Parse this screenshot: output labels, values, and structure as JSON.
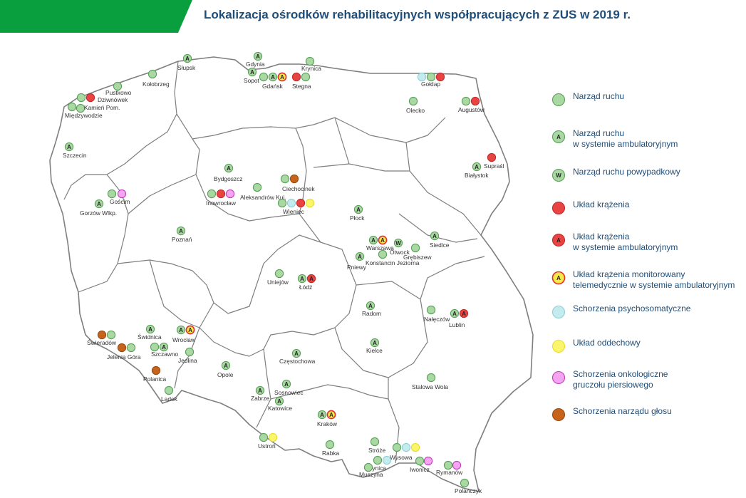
{
  "title": "Lokalizacja ośrodków rehabilitacyjnych współpracujących z ZUS w 2019 r.",
  "colors": {
    "brand_green": "#0a9f3e",
    "title_blue": "#1f4e79",
    "border_gray": "#7f7f7f"
  },
  "legend": [
    {
      "id": "narzad",
      "label": "Narząd ruchu",
      "fill": "#a9d8a2",
      "stroke": "#5aa05a",
      "letter": ""
    },
    {
      "id": "narzad-a",
      "label": "Narząd ruchu\nw systemie ambulatoryjnym",
      "fill": "#a9d8a2",
      "stroke": "#5aa05a",
      "letter": "A"
    },
    {
      "id": "narzad-w",
      "label": "Narząd ruchu powypadkowy",
      "fill": "#a9d8a2",
      "stroke": "#5aa05a",
      "letter": "W"
    },
    {
      "id": "uklad",
      "label": "Układ krążenia",
      "fill": "#e84444",
      "stroke": "#c42a2a",
      "letter": ""
    },
    {
      "id": "uklad-a",
      "label": "Układ krążenia\nw systemie ambulatoryjnym",
      "fill": "#e84444",
      "stroke": "#c42a2a",
      "letter": "A"
    },
    {
      "id": "uklad-t",
      "label": "Układ krążenia monitorowany\ntelemedycznie w systemie ambulatoryjnym",
      "fill": "#f7e84a",
      "stroke": "#e03030",
      "letter": "A"
    },
    {
      "id": "psycho",
      "label": "Schorzenia psychosomatyczne",
      "fill": "#c4ecef",
      "stroke": "#8fd0d6",
      "letter": ""
    },
    {
      "id": "oddech",
      "label": "Układ oddechowy",
      "fill": "#fbf56a",
      "stroke": "#e8dc30",
      "letter": ""
    },
    {
      "id": "onko",
      "label": "Schorzenia onkologiczne\ngruczołu piersiowego",
      "fill": "#f3a6ef",
      "stroke": "#c43ac0",
      "letter": ""
    },
    {
      "id": "glos",
      "label": "Schorzenia narządu głosu",
      "fill": "#c7641c",
      "stroke": "#9b4a12",
      "letter": ""
    }
  ],
  "cities": [
    {
      "name": "Słupsk",
      "markers": [
        "narzad-a"
      ]
    },
    {
      "name": "Gdynia",
      "markers": [
        "narzad-a"
      ]
    },
    {
      "name": "Sopot",
      "markers": [
        "narzad-a"
      ]
    },
    {
      "name": "Gdańsk",
      "markers": [
        "narzad",
        "narzad-a",
        "uklad-t"
      ]
    },
    {
      "name": "Krynica",
      "markers": [
        "narzad"
      ]
    },
    {
      "name": "Stegna",
      "markers": [
        "uklad",
        "narzad"
      ]
    },
    {
      "name": "Gołdap",
      "markers": [
        "psycho",
        "narzad",
        "uklad"
      ]
    },
    {
      "name": "Olecko",
      "markers": [
        "narzad"
      ]
    },
    {
      "name": "Augustów",
      "markers": [
        "narzad",
        "uklad"
      ]
    },
    {
      "name": "Kołobrzeg",
      "markers": [
        "narzad"
      ]
    },
    {
      "name": "Pustkowo",
      "markers": [
        "narzad"
      ]
    },
    {
      "name": "Dziwnówek",
      "markers": [
        "narzad",
        "uklad"
      ]
    },
    {
      "name": "Kamień Pom.",
      "markers": [
        "narzad"
      ]
    },
    {
      "name": "Międzywodzie",
      "markers": [
        "narzad"
      ]
    },
    {
      "name": "Szczecin",
      "markers": [
        "narzad-a"
      ]
    },
    {
      "name": "Supraśl",
      "markers": [
        "uklad"
      ]
    },
    {
      "name": "Białystok",
      "markers": [
        "narzad-a"
      ]
    },
    {
      "name": "Bydgoszcz",
      "markers": [
        "narzad-a"
      ]
    },
    {
      "name": "Ciechocinek",
      "markers": [
        "narzad",
        "glos"
      ]
    },
    {
      "name": "Aleksandrów Kuj.",
      "markers": [
        "narzad"
      ]
    },
    {
      "name": "Inowrocław",
      "markers": [
        "narzad",
        "uklad",
        "onko"
      ]
    },
    {
      "name": "Wieniec",
      "markers": [
        "narzad",
        "psycho",
        "uklad",
        "oddech"
      ]
    },
    {
      "name": "Gościm",
      "markers": [
        "narzad",
        "onko"
      ]
    },
    {
      "name": "Gorzów Wlkp.",
      "markers": [
        "narzad-a"
      ]
    },
    {
      "name": "Płock",
      "markers": [
        "narzad-a"
      ]
    },
    {
      "name": "Poznań",
      "markers": [
        "narzad-a"
      ]
    },
    {
      "name": "Warszawa",
      "markers": [
        "narzad-a",
        "uklad-t"
      ]
    },
    {
      "name": "Otwock",
      "markers": [
        "narzad-w"
      ]
    },
    {
      "name": "Siedlce",
      "markers": [
        "narzad-a"
      ]
    },
    {
      "name": "Grębiszew",
      "markers": [
        "narzad"
      ]
    },
    {
      "name": "Konstancin Jeziorna",
      "markers": [
        "narzad"
      ]
    },
    {
      "name": "Pniewy",
      "markers": [
        "narzad-a"
      ]
    },
    {
      "name": "Uniejów",
      "markers": [
        "narzad"
      ]
    },
    {
      "name": "Łódź",
      "markers": [
        "narzad-a",
        "uklad-a"
      ]
    },
    {
      "name": "Radom",
      "markers": [
        "narzad-a"
      ]
    },
    {
      "name": "Nałęczów",
      "markers": [
        "narzad"
      ]
    },
    {
      "name": "Lublin",
      "markers": [
        "narzad-a",
        "uklad-a"
      ]
    },
    {
      "name": "Świeradów",
      "markers": [
        "glos",
        "narzad"
      ]
    },
    {
      "name": "Świdnica",
      "markers": [
        "narzad-a"
      ]
    },
    {
      "name": "Wrocław",
      "markers": [
        "narzad-a",
        "uklad-t"
      ]
    },
    {
      "name": "Szczawno",
      "markers": [
        "narzad",
        "narzad-a"
      ]
    },
    {
      "name": "Jedlina",
      "markers": [
        "narzad"
      ]
    },
    {
      "name": "Jelenia Góra",
      "markers": [
        "glos",
        "narzad"
      ]
    },
    {
      "name": "Polanica",
      "markers": [
        "glos"
      ]
    },
    {
      "name": "Lądek",
      "markers": [
        "narzad"
      ]
    },
    {
      "name": "Opole",
      "markers": [
        "narzad-a"
      ]
    },
    {
      "name": "Częstochowa",
      "markers": [
        "narzad-a"
      ]
    },
    {
      "name": "Kielce",
      "markers": [
        "narzad-a"
      ]
    },
    {
      "name": "Stalowa Wola",
      "markers": [
        "narzad"
      ]
    },
    {
      "name": "Zabrze",
      "markers": [
        "narzad-a"
      ]
    },
    {
      "name": "Sosnowiec",
      "markers": [
        "narzad-a"
      ]
    },
    {
      "name": "Katowice",
      "markers": [
        "narzad-a"
      ]
    },
    {
      "name": "Kraków",
      "markers": [
        "narzad-a",
        "uklad-t"
      ]
    },
    {
      "name": "Ustroń",
      "markers": [
        "narzad",
        "oddech"
      ]
    },
    {
      "name": "Rabka",
      "markers": [
        "narzad"
      ]
    },
    {
      "name": "Stróże",
      "markers": [
        "narzad"
      ]
    },
    {
      "name": "Wysowa",
      "markers": [
        "narzad",
        "psycho",
        "oddech"
      ]
    },
    {
      "name": "Krynica",
      "markers": [
        "narzad",
        "psycho"
      ]
    },
    {
      "name": "Muszyna",
      "markers": [
        "narzad"
      ]
    },
    {
      "name": "Iwonicz",
      "markers": [
        "narzad",
        "onko"
      ]
    },
    {
      "name": "Rymanów",
      "markers": [
        "narzad",
        "onko"
      ]
    },
    {
      "name": "Polańczyk",
      "markers": [
        "narzad"
      ]
    }
  ]
}
